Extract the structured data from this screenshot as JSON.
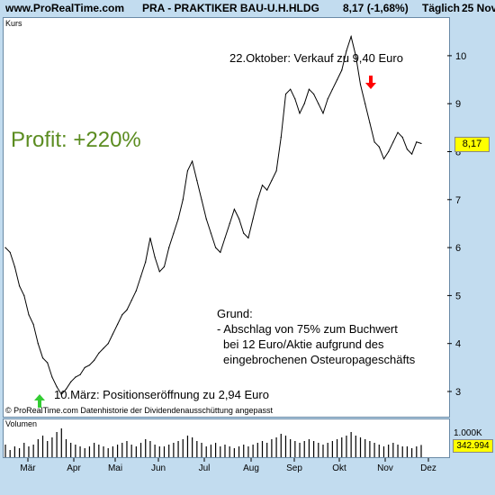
{
  "header": {
    "site": "www.ProRealTime.com",
    "symbol": "PRA - PRAKTIKER BAU-U.H.HLDG",
    "quote": "8,17 (-1,68%)",
    "period": "Täglich",
    "date": "25 Nov"
  },
  "price_panel": {
    "label": "Kurs",
    "footer": "© ProRealTime.com  Datenhistorie der Dividendenausschüttung angepasst",
    "last_value": "8,17"
  },
  "volume_panel": {
    "label": "Volumen",
    "scale_label": "1.000K",
    "last_value": "342.994"
  },
  "annotations": {
    "profit": "Profit: +220%",
    "sell": "22.Oktober: Verkauf zu 9,40 Euro",
    "buy": "10.März: Positionseröffnung zu 2,94 Euro",
    "reason": [
      "Grund:",
      "- Abschlag von 75% zum Buchwert",
      "  bei 12 Euro/Aktie aufgrund des",
      "  eingebrochenen Osteuropageschäfts"
    ]
  },
  "colors": {
    "background": "#c2dcef",
    "price_line": "#000000",
    "sell_arrow": "#ff0000",
    "buy_arrow": "#33cc33",
    "profit_text": "#5b8c20",
    "value_box": "#ffff00"
  },
  "chart_data": {
    "type": "line",
    "x_ticks": [
      "Mär",
      "Apr",
      "Mai",
      "Jun",
      "Jul",
      "Aug",
      "Sep",
      "Okt",
      "Nov",
      "Dez"
    ],
    "y_ticks": [
      3,
      4,
      5,
      6,
      7,
      8,
      9,
      10
    ],
    "ylim": [
      2.8,
      10.6
    ],
    "series": [
      {
        "values": [
          6.0,
          5.9,
          5.6,
          5.2,
          5.0,
          4.6,
          4.4,
          4.0,
          3.7,
          3.6,
          3.3,
          3.1,
          2.94,
          3.05,
          3.2,
          3.3,
          3.35,
          3.5,
          3.55,
          3.65,
          3.8,
          3.9,
          4.0,
          4.2,
          4.4,
          4.6,
          4.7,
          4.9,
          5.1,
          5.4,
          5.7,
          6.2,
          5.8,
          5.5,
          5.6,
          6.0,
          6.3,
          6.6,
          7.0,
          7.6,
          7.8,
          7.4,
          7.0,
          6.6,
          6.3,
          6.0,
          5.9,
          6.2,
          6.5,
          6.8,
          6.6,
          6.3,
          6.2,
          6.6,
          7.0,
          7.3,
          7.2,
          7.4,
          7.6,
          8.3,
          9.2,
          9.3,
          9.1,
          8.8,
          9.0,
          9.3,
          9.2,
          9.0,
          8.8,
          9.1,
          9.3,
          9.5,
          9.7,
          10.1,
          10.4,
          10.0,
          9.4,
          9.0,
          8.6,
          8.2,
          8.1,
          7.85,
          8.0,
          8.2,
          8.4,
          8.3,
          8.05,
          7.95,
          8.2,
          8.17
        ]
      }
    ],
    "volume": [
      0.35,
      0.2,
      0.3,
      0.25,
      0.4,
      0.3,
      0.35,
      0.5,
      0.6,
      0.45,
      0.55,
      0.7,
      0.8,
      0.5,
      0.4,
      0.35,
      0.3,
      0.25,
      0.3,
      0.4,
      0.35,
      0.3,
      0.25,
      0.3,
      0.35,
      0.4,
      0.45,
      0.35,
      0.3,
      0.4,
      0.5,
      0.45,
      0.35,
      0.3,
      0.3,
      0.35,
      0.4,
      0.45,
      0.5,
      0.6,
      0.55,
      0.45,
      0.4,
      0.3,
      0.35,
      0.4,
      0.3,
      0.35,
      0.3,
      0.25,
      0.3,
      0.35,
      0.3,
      0.35,
      0.4,
      0.45,
      0.4,
      0.5,
      0.55,
      0.65,
      0.6,
      0.5,
      0.45,
      0.4,
      0.45,
      0.5,
      0.45,
      0.4,
      0.35,
      0.4,
      0.45,
      0.5,
      0.55,
      0.6,
      0.7,
      0.6,
      0.55,
      0.5,
      0.45,
      0.4,
      0.35,
      0.3,
      0.35,
      0.4,
      0.35,
      0.3,
      0.3,
      0.25,
      0.3,
      0.34
    ]
  }
}
